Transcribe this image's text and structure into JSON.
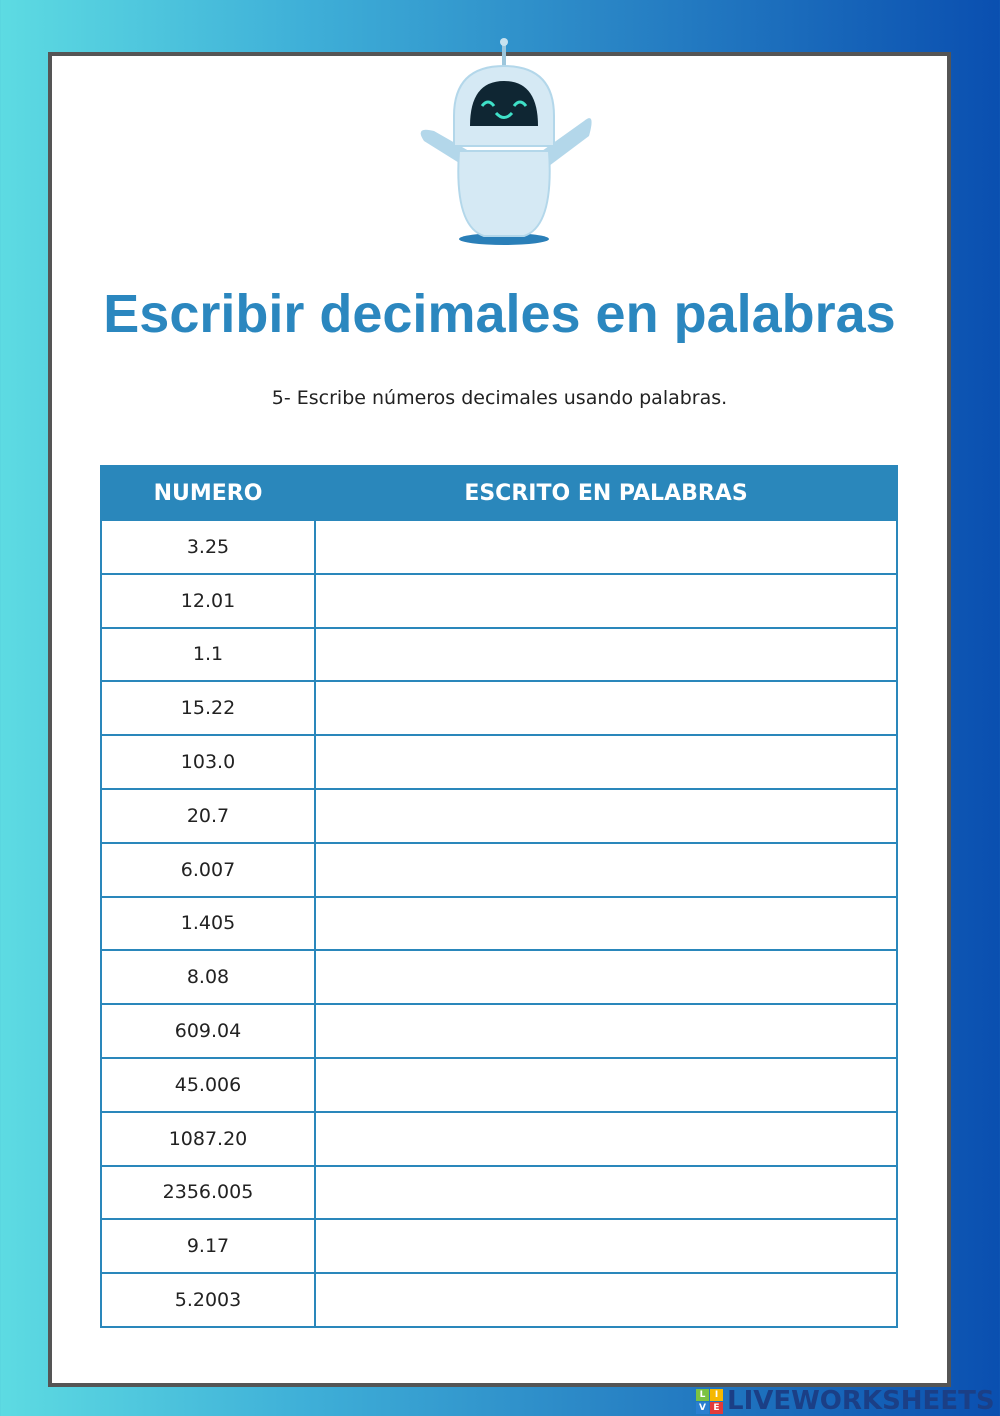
{
  "title": "Escribir decimales en palabras",
  "instruction": "5- Escribe números decimales usando palabras.",
  "table": {
    "headers": [
      "NUMERO",
      "ESCRITO EN PALABRAS"
    ],
    "rows": [
      "3.25",
      "12.01",
      "1.1",
      "15.22",
      "103.0",
      "20.7",
      "6.007",
      "1.405",
      "8.08",
      "609.04",
      "45.006",
      "1087.20",
      "2356.005",
      "9.17",
      "5.2003"
    ]
  },
  "footer": {
    "logo_text": "LIVEWORKSHEETS",
    "logo_badge": [
      "L",
      "I",
      "V",
      "E"
    ]
  },
  "colors": {
    "accent": "#2a87bb",
    "title": "#2b87bf"
  }
}
